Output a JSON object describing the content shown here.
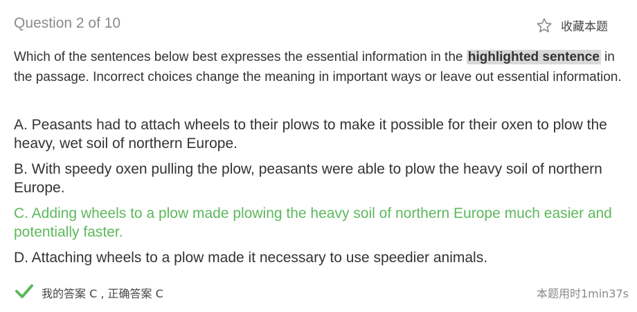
{
  "header": {
    "question_counter": "Question 2 of 10",
    "favorite_icon": "star-outline-icon",
    "favorite_label": "收藏本题"
  },
  "stem": {
    "before": "Which of the sentences below best expresses the essential information in the ",
    "highlight": "highlighted sentence",
    "after": " in the passage. Incorrect choices change the meaning in important ways or leave out essential information."
  },
  "options": [
    {
      "text": "A. Peasants had to attach wheels to their plows to make it possible for their oxen to plow the heavy, wet soil of northern Europe.",
      "correct": false
    },
    {
      "text": "B. With speedy oxen pulling the plow, peasants were able to plow the heavy soil of northern Europe.",
      "correct": false
    },
    {
      "text": "C. Adding wheels to a plow made plowing the heavy soil of northern Europe much easier and potentially faster.",
      "correct": true
    },
    {
      "text": "D. Attaching wheels to a plow made it necessary to use speedier animals.",
      "correct": false
    }
  ],
  "footer": {
    "status_icon": "check-icon",
    "answer_text": "我的答案 C , 正确答案 C",
    "time_text": "本题用时1min37s"
  },
  "colors": {
    "correct": "#5cb85c",
    "muted": "#8a8a8a",
    "highlight_bg": "#d9d9d9"
  }
}
